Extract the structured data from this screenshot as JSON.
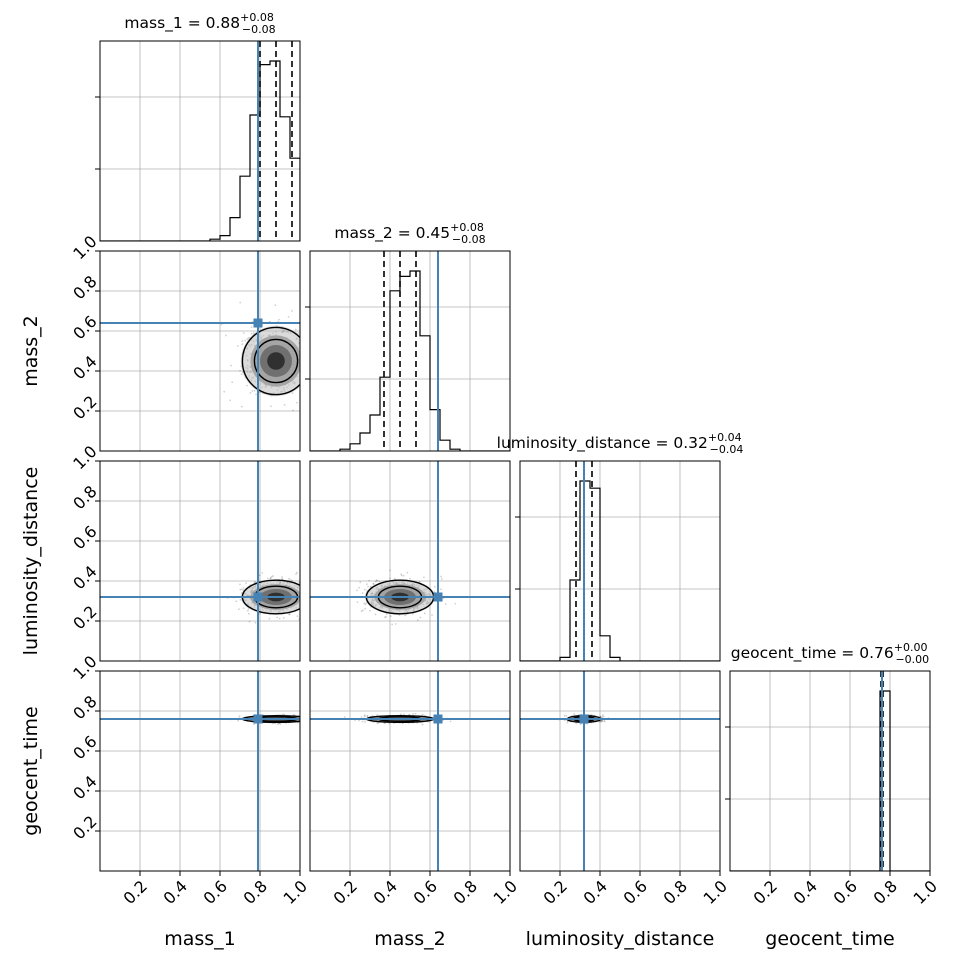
{
  "chart_data": {
    "type": "corner",
    "parameters": [
      "mass_1",
      "mass_2",
      "luminosity_distance",
      "geocent_time"
    ],
    "axis_labels": [
      "mass_1",
      "mass_2",
      "luminosity_distance",
      "geocent_time"
    ],
    "axis_range": [
      0,
      1
    ],
    "tick_values": [
      0.2,
      0.4,
      0.6,
      0.8,
      1.0
    ],
    "tick_labels": [
      "0.2",
      "0.4",
      "0.6",
      "0.8",
      "1.0"
    ],
    "grid": true,
    "truth_color": "#4682b4",
    "titles": [
      {
        "param": "mass_1",
        "text": "mass_1 = 0.88",
        "upper": "+0.08",
        "lower": "−0.08"
      },
      {
        "param": "mass_2",
        "text": "mass_2 = 0.45",
        "upper": "+0.08",
        "lower": "−0.08"
      },
      {
        "param": "luminosity_distance",
        "text": "luminosity_distance = 0.32",
        "upper": "+0.04",
        "lower": "−0.04"
      },
      {
        "param": "geocent_time",
        "text": "geocent_time = 0.76",
        "upper": "+0.00",
        "lower": "−0.00"
      }
    ],
    "medians": [
      0.88,
      0.45,
      0.32,
      0.76
    ],
    "quantiles": [
      [
        0.8,
        0.88,
        0.96
      ],
      [
        0.37,
        0.45,
        0.53
      ],
      [
        0.28,
        0.32,
        0.36
      ],
      [
        0.755,
        0.76,
        0.765
      ]
    ],
    "truths": [
      0.79,
      0.64,
      0.32,
      0.76
    ],
    "histograms": [
      {
        "param": "mass_1",
        "bin_edges": [
          0.5,
          0.55,
          0.6,
          0.65,
          0.7,
          0.75,
          0.8,
          0.85,
          0.9,
          0.95,
          1.0
        ],
        "counts": [
          0,
          0.01,
          0.03,
          0.13,
          0.36,
          0.7,
          0.98,
          1.0,
          0.69,
          0.46
        ]
      },
      {
        "param": "mass_2",
        "bin_edges": [
          0.1,
          0.15,
          0.2,
          0.25,
          0.3,
          0.35,
          0.4,
          0.45,
          0.5,
          0.55,
          0.6,
          0.65,
          0.7,
          0.75,
          0.8
        ],
        "counts": [
          0,
          0.01,
          0.04,
          0.1,
          0.2,
          0.41,
          0.89,
          0.97,
          1.0,
          0.64,
          0.23,
          0.06,
          0.01,
          0
        ]
      },
      {
        "param": "luminosity_distance",
        "bin_edges": [
          0.15,
          0.2,
          0.25,
          0.3,
          0.35,
          0.4,
          0.45,
          0.5
        ],
        "counts": [
          0,
          0.02,
          0.45,
          1.0,
          0.96,
          0.14,
          0.02
        ]
      },
      {
        "param": "geocent_time",
        "bin_edges": [
          0.7,
          0.75,
          0.76,
          0.8
        ],
        "counts": [
          0,
          1.0,
          1.0
        ]
      }
    ],
    "pairs": [
      {
        "x": "mass_1",
        "y": "mass_2",
        "center": [
          0.88,
          0.45
        ],
        "sigma": [
          0.08,
          0.08
        ]
      },
      {
        "x": "mass_1",
        "y": "luminosity_distance",
        "center": [
          0.88,
          0.32
        ],
        "sigma": [
          0.08,
          0.04
        ]
      },
      {
        "x": "mass_2",
        "y": "luminosity_distance",
        "center": [
          0.45,
          0.32
        ],
        "sigma": [
          0.08,
          0.04
        ]
      },
      {
        "x": "mass_1",
        "y": "geocent_time",
        "center": [
          0.88,
          0.76
        ],
        "sigma": [
          0.08,
          0.008
        ]
      },
      {
        "x": "mass_2",
        "y": "geocent_time",
        "center": [
          0.45,
          0.76
        ],
        "sigma": [
          0.08,
          0.008
        ]
      },
      {
        "x": "luminosity_distance",
        "y": "geocent_time",
        "center": [
          0.32,
          0.76
        ],
        "sigma": [
          0.04,
          0.008
        ]
      }
    ]
  }
}
